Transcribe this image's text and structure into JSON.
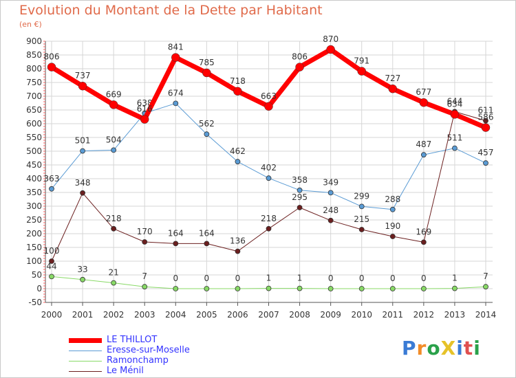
{
  "header": {
    "title": "Evolution du Montant de la Dette par Habitant",
    "unit": "(en €)"
  },
  "logo": {
    "text": "ProXiti",
    "colors": [
      "#3a7bd5",
      "#f28c28",
      "#2aa14a",
      "#e6c229",
      "#3a7bd5",
      "#e05050",
      "#2aa14a"
    ]
  },
  "chart_data": {
    "type": "line",
    "title": "Evolution du Montant de la Dette par Habitant",
    "ylabel": "(en €)",
    "ylim": [
      -50,
      900
    ],
    "yticks": [
      -50,
      0,
      50,
      100,
      150,
      200,
      250,
      300,
      350,
      400,
      450,
      500,
      550,
      600,
      650,
      700,
      750,
      800,
      850,
      900
    ],
    "grid": true,
    "legend_position": "bottom-left",
    "x": [
      "2000",
      "2001",
      "2002",
      "2003",
      "2004",
      "2005",
      "2006",
      "2007",
      "2008",
      "2009",
      "2010",
      "2011",
      "2012",
      "2013",
      "2014"
    ],
    "series": [
      {
        "name": "Eresse-sur-Moselle",
        "color": "#5a9bd4",
        "width": 1,
        "values": [
          363,
          501,
          504,
          638,
          674,
          562,
          462,
          402,
          358,
          349,
          299,
          288,
          487,
          511,
          457
        ],
        "labels": [
          "363",
          "501",
          "504",
          "638",
          "674",
          "562",
          "462",
          "402",
          "358",
          "349",
          "299",
          "288",
          "487",
          "511",
          "457"
        ]
      },
      {
        "name": "Ramonchamp",
        "color": "#88d966",
        "width": 1,
        "values": [
          44,
          33,
          21,
          7,
          0,
          0,
          0,
          1,
          1,
          0,
          0,
          0,
          0,
          1,
          7
        ],
        "labels": [
          "44",
          "33",
          "21",
          "7",
          "0",
          "0",
          "0",
          "1",
          "1",
          "0",
          "0",
          "0",
          "0",
          "1",
          "7"
        ]
      },
      {
        "name": "Le Ménil",
        "color": "#6b1f1f",
        "width": 1,
        "values": [
          100,
          348,
          218,
          170,
          164,
          164,
          136,
          218,
          295,
          248,
          215,
          190,
          169,
          644,
          611
        ],
        "labels": [
          "100",
          "348",
          "218",
          "170",
          "164",
          "164",
          "136",
          "218",
          "295",
          "248",
          "215",
          "190",
          "169",
          "644",
          "611"
        ]
      },
      {
        "name": "LE THILLOT",
        "color": "#ff0000",
        "width": 7,
        "values": [
          806,
          737,
          669,
          616,
          841,
          785,
          718,
          663,
          806,
          870,
          791,
          727,
          677,
          634,
          586
        ],
        "labels": [
          "806",
          "737",
          "669",
          "616",
          "841",
          "785",
          "718",
          "663",
          "806",
          "870",
          "791",
          "727",
          "677",
          "634",
          "586"
        ]
      }
    ],
    "legend": [
      {
        "name": "LE THILLOT",
        "color": "#ff0000",
        "width": 7
      },
      {
        "name": "Eresse-sur-Moselle",
        "color": "#5a9bd4",
        "width": 1
      },
      {
        "name": "Ramonchamp",
        "color": "#88d966",
        "width": 1
      },
      {
        "name": "Le Ménil",
        "color": "#6b1f1f",
        "width": 1
      }
    ]
  }
}
